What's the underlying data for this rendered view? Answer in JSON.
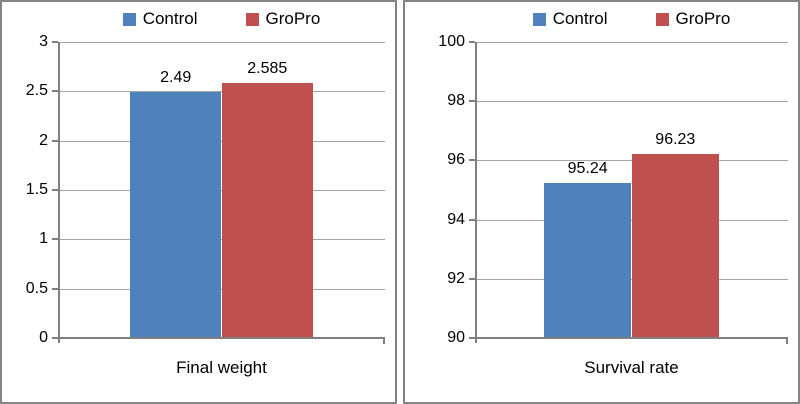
{
  "colors": {
    "control_blue": "#4f81bd",
    "gropro_red": "#c0504d",
    "gridline_gray": "#a6a6a6",
    "axis_gray": "#808080",
    "panel_border_gray": "#848484",
    "text_black": "#000000"
  },
  "legend": {
    "position": "top",
    "items": [
      {
        "label": "Control",
        "color": "#4f81bd"
      },
      {
        "label": "GroPro",
        "color": "#c0504d"
      }
    ]
  },
  "chart_data": [
    {
      "type": "bar",
      "title": "",
      "categories": [
        "Final weight"
      ],
      "xlabel": "Final weight",
      "ylabel": "",
      "ylim": [
        0,
        3
      ],
      "yticks": [
        "0",
        "0.5",
        "1",
        "1.5",
        "2",
        "2.5",
        "3"
      ],
      "grid": true,
      "legend_position": "top",
      "series": [
        {
          "name": "Control",
          "color": "#4f81bd",
          "values": [
            2.49
          ],
          "data_labels": [
            "2.49"
          ]
        },
        {
          "name": "GroPro",
          "color": "#c0504d",
          "values": [
            2.585
          ],
          "data_labels": [
            "2.585"
          ]
        }
      ]
    },
    {
      "type": "bar",
      "title": "",
      "categories": [
        "Survival rate"
      ],
      "xlabel": "Survival rate",
      "ylabel": "",
      "ylim": [
        90,
        100
      ],
      "yticks": [
        "90",
        "92",
        "94",
        "96",
        "98",
        "100"
      ],
      "grid": true,
      "legend_position": "top",
      "series": [
        {
          "name": "Control",
          "color": "#4f81bd",
          "values": [
            95.24
          ],
          "data_labels": [
            "95.24"
          ]
        },
        {
          "name": "GroPro",
          "color": "#c0504d",
          "values": [
            96.23
          ],
          "data_labels": [
            "96.23"
          ]
        }
      ]
    }
  ]
}
